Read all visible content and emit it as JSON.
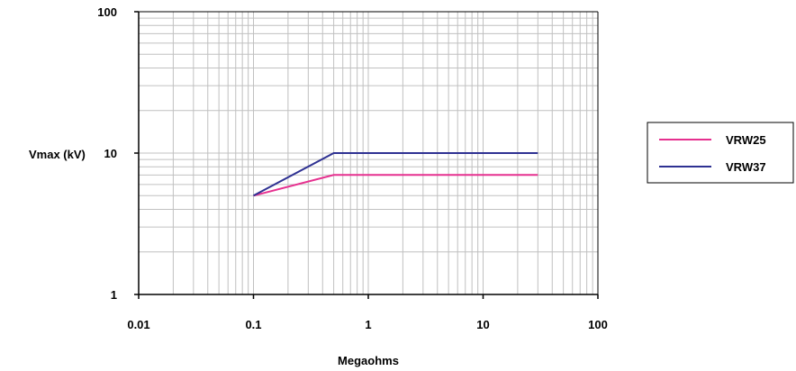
{
  "chart_data": {
    "type": "line",
    "xlabel": "Megaohms",
    "ylabel": "Vmax (kV)",
    "x_scale": "log",
    "y_scale": "log",
    "xlim": [
      0.01,
      100
    ],
    "ylim": [
      1,
      100
    ],
    "x_ticks": [
      "0.01",
      "0.1",
      "1",
      "10",
      "100"
    ],
    "y_ticks": [
      "1",
      "10",
      "100"
    ],
    "grid": true,
    "legend_position": "right",
    "series": [
      {
        "name": "VRW25",
        "color": "#e6308f",
        "x": [
          0.1,
          0.5,
          30
        ],
        "y": [
          5,
          7,
          7
        ]
      },
      {
        "name": "VRW37",
        "color": "#2e3192",
        "x": [
          0.1,
          0.5,
          30
        ],
        "y": [
          5,
          10,
          10
        ]
      }
    ]
  }
}
